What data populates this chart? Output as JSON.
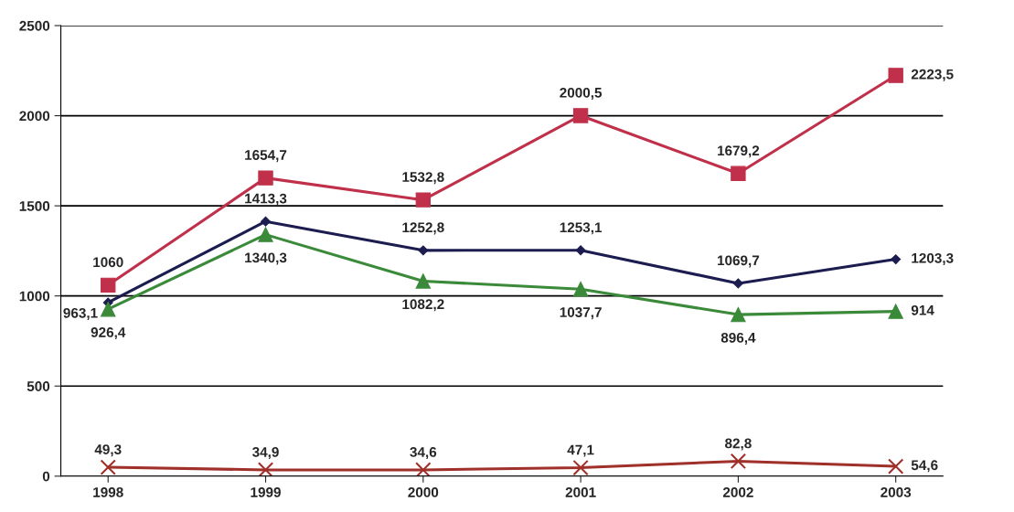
{
  "chart_data": {
    "type": "line",
    "categories": [
      "1998",
      "1999",
      "2000",
      "2001",
      "2002",
      "2003"
    ],
    "series": [
      {
        "color": "#c0304a",
        "marker": "square",
        "values": [
          1060,
          1654.7,
          1532.8,
          2000.5,
          1679.2,
          2223.5
        ],
        "value_labels": [
          "1060",
          "1654,7",
          "1532,8",
          "2000,5",
          "1679,2",
          "2223,5"
        ]
      },
      {
        "color": "#1c1c50",
        "marker": "diamond",
        "values": [
          963.1,
          1413.3,
          1252.8,
          1253.1,
          1069.7,
          1203.3
        ],
        "value_labels": [
          "963,1",
          "1413,3",
          "1252,8",
          "1253,1",
          "1069,7",
          "1203,3"
        ]
      },
      {
        "color": "#3a8a3a",
        "marker": "triangle",
        "values": [
          926.4,
          1340.3,
          1082.2,
          1037.7,
          896.4,
          914
        ],
        "value_labels": [
          "926,4",
          "1340,3",
          "1082,2",
          "1037,7",
          "896,4",
          "914"
        ]
      },
      {
        "color": "#a0302a",
        "marker": "cross",
        "values": [
          49.3,
          34.9,
          34.6,
          47.1,
          82.8,
          54.6
        ],
        "value_labels": [
          "49,3",
          "34,9",
          "34,6",
          "47,1",
          "82,8",
          "54,6"
        ]
      }
    ],
    "ylim": [
      0,
      2500
    ],
    "yticks": [
      0,
      500,
      1000,
      1500,
      2000,
      2500
    ],
    "grid": "y",
    "legend": false
  }
}
